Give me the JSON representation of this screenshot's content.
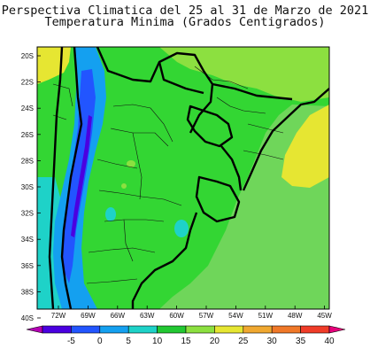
{
  "title_line1": "Perspectiva Climatica del 25 al 31 de Marzo de 2021",
  "title_line2": "Temperatura Minima (Grados Centigrados)",
  "latitude_labels": [
    "20S",
    "22S",
    "24S",
    "26S",
    "28S",
    "30S",
    "32S",
    "34S",
    "36S",
    "38S",
    "40S"
  ],
  "longitude_labels": [
    "72W",
    "69W",
    "66W",
    "63W",
    "60W",
    "57W",
    "54W",
    "51W",
    "48W",
    "45W"
  ],
  "colorbar": {
    "labels": [
      "-5",
      "0",
      "5",
      "10",
      "15",
      "20",
      "25",
      "30",
      "35",
      "40"
    ],
    "colors": [
      "#b400b4",
      "#4a00e0",
      "#2255ff",
      "#14a0f0",
      "#1ed2c8",
      "#22c832",
      "#8ce040",
      "#e6e632",
      "#f0a830",
      "#f07828",
      "#f03c28",
      "#e6007a"
    ]
  },
  "map_colors": {
    "background_green": "#33d633",
    "light_green": "#8ce040",
    "yellow": "#e6e632",
    "cyan": "#1ed2c8",
    "light_blue": "#14a0f0",
    "blue": "#2255ff",
    "violet": "#4a00e0",
    "ocean_green": "#6fd65a"
  }
}
